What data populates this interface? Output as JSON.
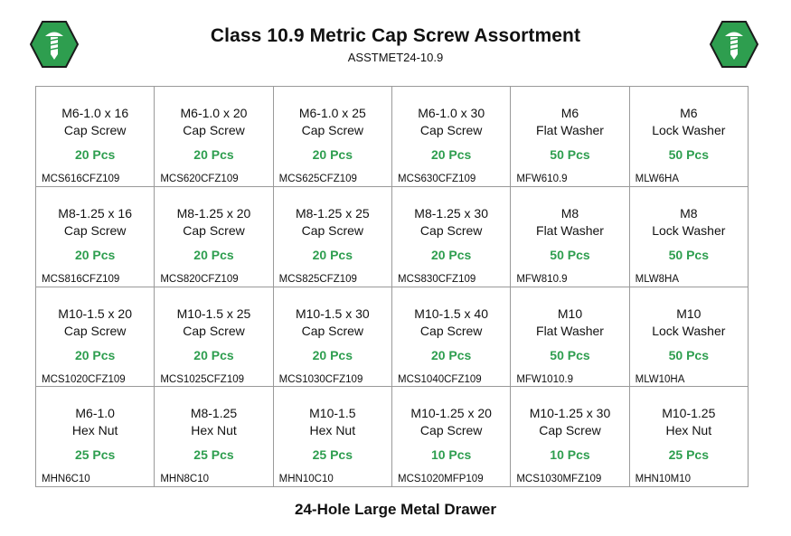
{
  "header": {
    "title": "Class 10.9 Metric Cap Screw Assortment",
    "subtitle": "ASSTMET24-10.9",
    "logo_icon": "hex-screw-icon",
    "logo_color": "#2e9e4f"
  },
  "cells": [
    {
      "size": "M6-1.0 x 16",
      "type": "Cap Screw",
      "qty": "20 Pcs",
      "part": "MCS616CFZ109"
    },
    {
      "size": "M6-1.0 x 20",
      "type": "Cap Screw",
      "qty": "20 Pcs",
      "part": "MCS620CFZ109"
    },
    {
      "size": "M6-1.0 x 25",
      "type": "Cap Screw",
      "qty": "20 Pcs",
      "part": "MCS625CFZ109"
    },
    {
      "size": "M6-1.0 x 30",
      "type": "Cap Screw",
      "qty": "20 Pcs",
      "part": "MCS630CFZ109"
    },
    {
      "size": "M6",
      "type": "Flat Washer",
      "qty": "50 Pcs",
      "part": "MFW610.9"
    },
    {
      "size": "M6",
      "type": "Lock Washer",
      "qty": "50 Pcs",
      "part": "MLW6HA"
    },
    {
      "size": "M8-1.25 x 16",
      "type": "Cap Screw",
      "qty": "20 Pcs",
      "part": "MCS816CFZ109"
    },
    {
      "size": "M8-1.25 x 20",
      "type": "Cap Screw",
      "qty": "20 Pcs",
      "part": "MCS820CFZ109"
    },
    {
      "size": "M8-1.25 x 25",
      "type": "Cap Screw",
      "qty": "20 Pcs",
      "part": "MCS825CFZ109"
    },
    {
      "size": "M8-1.25 x 30",
      "type": "Cap Screw",
      "qty": "20 Pcs",
      "part": "MCS830CFZ109"
    },
    {
      "size": "M8",
      "type": "Flat Washer",
      "qty": "50 Pcs",
      "part": "MFW810.9"
    },
    {
      "size": "M8",
      "type": "Lock Washer",
      "qty": "50 Pcs",
      "part": "MLW8HA"
    },
    {
      "size": "M10-1.5 x 20",
      "type": "Cap Screw",
      "qty": "20 Pcs",
      "part": "MCS1020CFZ109"
    },
    {
      "size": "M10-1.5 x 25",
      "type": "Cap Screw",
      "qty": "20 Pcs",
      "part": "MCS1025CFZ109"
    },
    {
      "size": "M10-1.5 x 30",
      "type": "Cap Screw",
      "qty": "20 Pcs",
      "part": "MCS1030CFZ109"
    },
    {
      "size": "M10-1.5 x 40",
      "type": "Cap Screw",
      "qty": "20 Pcs",
      "part": "MCS1040CFZ109"
    },
    {
      "size": "M10",
      "type": "Flat Washer",
      "qty": "50 Pcs",
      "part": "MFW1010.9"
    },
    {
      "size": "M10",
      "type": "Lock Washer",
      "qty": "50 Pcs",
      "part": "MLW10HA"
    },
    {
      "size": "M6-1.0",
      "type": "Hex Nut",
      "qty": "25 Pcs",
      "part": "MHN6C10"
    },
    {
      "size": "M8-1.25",
      "type": "Hex Nut",
      "qty": "25 Pcs",
      "part": "MHN8C10"
    },
    {
      "size": "M10-1.5",
      "type": "Hex Nut",
      "qty": "25 Pcs",
      "part": "MHN10C10"
    },
    {
      "size": "M10-1.25 x 20",
      "type": "Cap Screw",
      "qty": "10 Pcs",
      "part": "MCS1020MFP109"
    },
    {
      "size": "M10-1.25 x 30",
      "type": "Cap Screw",
      "qty": "10 Pcs",
      "part": "MCS1030MFZ109"
    },
    {
      "size": "M10-1.25",
      "type": "Hex Nut",
      "qty": "25 Pcs",
      "part": "MHN10M10"
    }
  ],
  "footer": {
    "label": "24-Hole Large Metal Drawer"
  }
}
